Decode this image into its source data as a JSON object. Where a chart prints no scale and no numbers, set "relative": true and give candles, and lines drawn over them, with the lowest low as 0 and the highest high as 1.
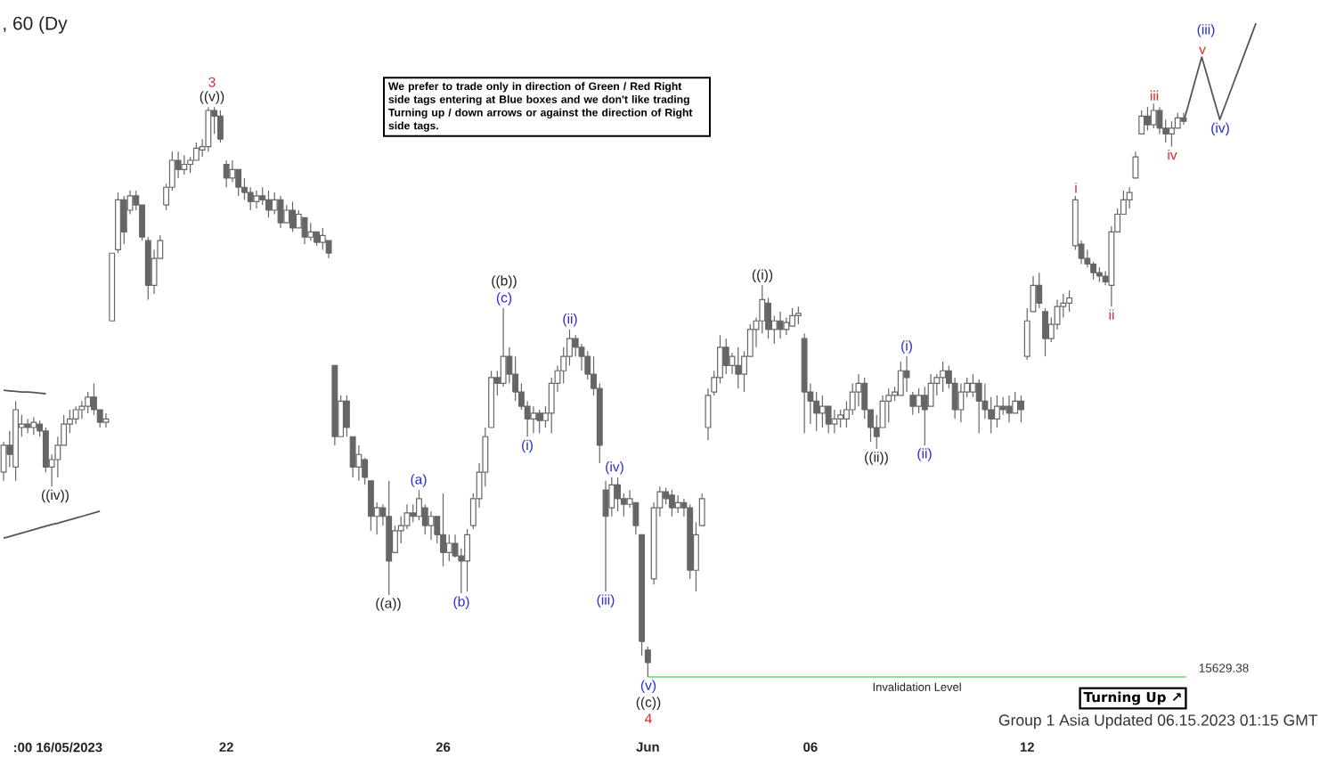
{
  "chart_data": {
    "type": "candlestick",
    "title": ", 60 (Dy",
    "relative": true,
    "color": "#666666",
    "categories": [
      null,
      null,
      null,
      null,
      null,
      null,
      null,
      null,
      null,
      ":00 16/05/2023",
      null,
      null,
      null,
      null,
      null,
      null,
      null,
      null,
      null,
      null,
      null,
      null,
      null,
      null,
      null,
      null,
      null,
      null,
      null,
      null,
      null,
      null,
      null,
      null,
      null,
      null,
      null,
      "22",
      null,
      null,
      null,
      null,
      null,
      null,
      null,
      null,
      null,
      null,
      null,
      null,
      null,
      null,
      null,
      null,
      null,
      null,
      null,
      null,
      null,
      null,
      null,
      null,
      null,
      null,
      null,
      null,
      null,
      null,
      null,
      null,
      null,
      null,
      null,
      "26",
      null,
      null,
      null,
      null,
      null,
      null,
      null,
      null,
      null,
      null,
      null,
      null,
      null,
      null,
      null,
      null,
      null,
      null,
      null,
      null,
      null,
      null,
      null,
      null,
      null,
      null,
      null,
      null,
      null,
      null,
      null,
      null,
      null,
      "Jun",
      null,
      null,
      null,
      null,
      null,
      null,
      null,
      null,
      null,
      null,
      null,
      null,
      null,
      null,
      null,
      null,
      null,
      null,
      null,
      null,
      null,
      null,
      null,
      null,
      null,
      null,
      "06",
      null,
      null,
      null,
      null,
      null,
      null,
      null,
      null,
      null,
      null,
      null,
      null,
      null,
      null,
      null,
      null,
      null,
      null,
      null,
      null,
      null,
      null,
      null,
      null,
      null,
      null,
      null,
      null,
      null,
      null,
      null,
      null,
      null,
      null,
      null,
      "12",
      null,
      null,
      null,
      null,
      null,
      null,
      null,
      null,
      null,
      null,
      null,
      null,
      null,
      null,
      null,
      null,
      null,
      null,
      null,
      null,
      null,
      null,
      null,
      null,
      null,
      null,
      null,
      null,
      null,
      null,
      null,
      null,
      null,
      null,
      null,
      null,
      null,
      null
    ],
    "ohlc": [
      [
        0.357,
        0.41,
        0.342,
        0.404
      ],
      [
        0.404,
        0.429,
        0.366,
        0.388
      ],
      [
        0.366,
        0.481,
        0.342,
        0.466
      ],
      [
        0.435,
        0.457,
        0.419,
        0.441
      ],
      [
        0.441,
        0.45,
        0.425,
        0.435
      ],
      [
        0.435,
        0.453,
        0.422,
        0.444
      ],
      [
        0.441,
        0.447,
        0.419,
        0.429
      ],
      [
        0.429,
        0.435,
        0.357,
        0.366
      ],
      [
        0.366,
        0.388,
        0.332,
        0.379
      ],
      [
        0.379,
        0.419,
        0.348,
        0.404
      ],
      [
        0.404,
        0.457,
        0.404,
        0.441
      ],
      [
        0.441,
        0.466,
        0.425,
        0.45
      ],
      [
        0.45,
        0.472,
        0.441,
        0.466
      ],
      [
        0.466,
        0.481,
        0.45,
        0.472
      ],
      [
        0.472,
        0.497,
        0.46,
        0.488
      ],
      [
        0.488,
        0.512,
        0.457,
        0.466
      ],
      [
        0.466,
        0.466,
        0.435,
        0.444
      ],
      [
        0.444,
        0.46,
        0.435,
        0.45
      ],
      [
        0.621,
        0.739,
        0.621,
        0.739
      ],
      [
        0.745,
        0.845,
        0.739,
        0.832
      ],
      [
        0.832,
        0.839,
        0.755,
        0.776
      ],
      [
        0.814,
        0.848,
        0.807,
        0.839
      ],
      [
        0.839,
        0.848,
        0.814,
        0.823
      ],
      [
        0.823,
        0.823,
        0.761,
        0.767
      ],
      [
        0.761,
        0.767,
        0.658,
        0.683
      ],
      [
        0.683,
        0.745,
        0.668,
        0.73
      ],
      [
        0.73,
        0.77,
        0.73,
        0.761
      ],
      [
        0.823,
        0.86,
        0.814,
        0.854
      ],
      [
        0.854,
        0.916,
        0.848,
        0.901
      ],
      [
        0.901,
        0.916,
        0.87,
        0.885
      ],
      [
        0.885,
        0.91,
        0.876,
        0.894
      ],
      [
        0.894,
        0.907,
        0.879,
        0.901
      ],
      [
        0.901,
        0.932,
        0.901,
        0.922
      ],
      [
        0.919,
        0.938,
        0.907,
        0.925
      ],
      [
        0.925,
        0.994,
        0.916,
        0.988
      ],
      [
        0.988,
        0.994,
        0.947,
        0.978
      ],
      [
        0.978,
        0.988,
        0.932,
        0.938
      ],
      [
        0.894,
        0.901,
        0.854,
        0.87
      ],
      [
        0.87,
        0.901,
        0.863,
        0.885
      ],
      [
        0.885,
        0.885,
        0.839,
        0.854
      ],
      [
        0.854,
        0.87,
        0.832,
        0.845
      ],
      [
        0.845,
        0.854,
        0.814,
        0.829
      ],
      [
        0.829,
        0.848,
        0.817,
        0.839
      ],
      [
        0.839,
        0.854,
        0.823,
        0.832
      ],
      [
        0.832,
        0.848,
        0.801,
        0.814
      ],
      [
        0.814,
        0.845,
        0.807,
        0.832
      ],
      [
        0.832,
        0.839,
        0.783,
        0.792
      ],
      [
        0.792,
        0.823,
        0.792,
        0.814
      ],
      [
        0.814,
        0.829,
        0.776,
        0.783
      ],
      [
        0.783,
        0.814,
        0.783,
        0.807
      ],
      [
        0.801,
        0.801,
        0.755,
        0.767
      ],
      [
        0.767,
        0.792,
        0.761,
        0.776
      ],
      [
        0.776,
        0.776,
        0.752,
        0.758
      ],
      [
        0.758,
        0.783,
        0.745,
        0.77
      ],
      [
        0.761,
        0.761,
        0.73,
        0.739
      ],
      [
        0.543,
        0.543,
        0.404,
        0.419
      ],
      [
        0.419,
        0.491,
        0.419,
        0.481
      ],
      [
        0.481,
        0.491,
        0.419,
        0.435
      ],
      [
        0.419,
        0.419,
        0.348,
        0.366
      ],
      [
        0.366,
        0.404,
        0.342,
        0.388
      ],
      [
        0.379,
        0.382,
        0.335,
        0.348
      ],
      [
        0.342,
        0.342,
        0.255,
        0.28
      ],
      [
        0.28,
        0.304,
        0.248,
        0.295
      ],
      [
        0.295,
        0.301,
        0.264,
        0.28
      ],
      [
        0.28,
        0.342,
        0.143,
        0.202
      ],
      [
        0.217,
        0.264,
        0.217,
        0.255
      ],
      [
        0.255,
        0.28,
        0.233,
        0.264
      ],
      [
        0.264,
        0.301,
        0.258,
        0.286
      ],
      [
        0.286,
        0.301,
        0.27,
        0.28
      ],
      [
        0.28,
        0.326,
        0.273,
        0.311
      ],
      [
        0.295,
        0.301,
        0.248,
        0.264
      ],
      [
        0.264,
        0.289,
        0.239,
        0.28
      ],
      [
        0.28,
        0.28,
        0.233,
        0.248
      ],
      [
        0.248,
        0.32,
        0.193,
        0.217
      ],
      [
        0.217,
        0.248,
        0.202,
        0.233
      ],
      [
        0.233,
        0.248,
        0.208,
        0.211
      ],
      [
        0.211,
        0.224,
        0.146,
        0.202
      ],
      [
        0.202,
        0.258,
        0.149,
        0.248
      ],
      [
        0.264,
        0.32,
        0.258,
        0.311
      ],
      [
        0.311,
        0.373,
        0.295,
        0.357
      ],
      [
        0.357,
        0.435,
        0.332,
        0.419
      ],
      [
        0.435,
        0.534,
        0.435,
        0.522
      ],
      [
        0.522,
        0.534,
        0.491,
        0.512
      ],
      [
        0.512,
        0.643,
        0.506,
        0.559
      ],
      [
        0.559,
        0.575,
        0.512,
        0.528
      ],
      [
        0.528,
        0.559,
        0.481,
        0.497
      ],
      [
        0.497,
        0.512,
        0.466,
        0.472
      ],
      [
        0.472,
        0.481,
        0.419,
        0.45
      ],
      [
        0.45,
        0.472,
        0.425,
        0.46
      ],
      [
        0.46,
        0.466,
        0.425,
        0.447
      ],
      [
        0.447,
        0.472,
        0.435,
        0.46
      ],
      [
        0.46,
        0.522,
        0.425,
        0.512
      ],
      [
        0.512,
        0.543,
        0.497,
        0.534
      ],
      [
        0.534,
        0.575,
        0.512,
        0.559
      ],
      [
        0.559,
        0.606,
        0.543,
        0.59
      ],
      [
        0.59,
        0.596,
        0.559,
        0.575
      ],
      [
        0.575,
        0.581,
        0.534,
        0.559
      ],
      [
        0.559,
        0.568,
        0.519,
        0.528
      ],
      [
        0.528,
        0.559,
        0.491,
        0.503
      ],
      [
        0.503,
        0.512,
        0.373,
        0.404
      ],
      [
        0.326,
        0.342,
        0.149,
        0.28
      ],
      [
        0.295,
        0.348,
        0.28,
        0.335
      ],
      [
        0.335,
        0.348,
        0.289,
        0.311
      ],
      [
        0.311,
        0.32,
        0.28,
        0.301
      ],
      [
        0.301,
        0.326,
        0.295,
        0.311
      ],
      [
        0.304,
        0.304,
        0.248,
        0.264
      ],
      [
        0.248,
        0.248,
        0.037,
        0.062
      ],
      [
        0.047,
        0.053,
        0,
        0.025
      ],
      [
        0.171,
        0.304,
        0.161,
        0.295
      ],
      [
        0.295,
        0.332,
        0.28,
        0.323
      ],
      [
        0.323,
        0.33,
        0.301,
        0.311
      ],
      [
        0.317,
        0.326,
        0.28,
        0.295
      ],
      [
        0.295,
        0.317,
        0.286,
        0.304
      ],
      [
        0.304,
        0.311,
        0.28,
        0.295
      ],
      [
        0.295,
        0.301,
        0.171,
        0.186
      ],
      [
        0.186,
        0.27,
        0.149,
        0.248
      ],
      [
        0.264,
        0.32,
        0.264,
        0.311
      ],
      [
        0.435,
        0.503,
        0.413,
        0.491
      ],
      [
        0.497,
        0.534,
        0.491,
        0.522
      ],
      [
        0.522,
        0.596,
        0.512,
        0.575
      ],
      [
        0.575,
        0.59,
        0.528,
        0.543
      ],
      [
        0.543,
        0.565,
        0.528,
        0.559
      ],
      [
        0.543,
        0.575,
        0.503,
        0.528
      ],
      [
        0.528,
        0.568,
        0.497,
        0.559
      ],
      [
        0.559,
        0.615,
        0.559,
        0.606
      ],
      [
        0.606,
        0.627,
        0.575,
        0.621
      ],
      [
        0.621,
        0.683,
        0.599,
        0.658
      ],
      [
        0.652,
        0.661,
        0.59,
        0.606
      ],
      [
        0.606,
        0.63,
        0.581,
        0.621
      ],
      [
        0.621,
        0.637,
        0.59,
        0.606
      ],
      [
        0.606,
        0.627,
        0.596,
        0.618
      ],
      [
        0.612,
        0.643,
        0.612,
        0.63
      ],
      [
        0.63,
        0.646,
        0.615,
        0.634
      ],
      [
        0.59,
        0.599,
        0.425,
        0.497
      ],
      [
        0.497,
        0.512,
        0.441,
        0.481
      ],
      [
        0.481,
        0.497,
        0.429,
        0.46
      ],
      [
        0.46,
        0.491,
        0.435,
        0.472
      ],
      [
        0.472,
        0.472,
        0.425,
        0.441
      ],
      [
        0.441,
        0.466,
        0.425,
        0.45
      ],
      [
        0.45,
        0.466,
        0.435,
        0.457
      ],
      [
        0.45,
        0.481,
        0.435,
        0.466
      ],
      [
        0.466,
        0.512,
        0.457,
        0.497
      ],
      [
        0.497,
        0.528,
        0.472,
        0.512
      ],
      [
        0.512,
        0.522,
        0.45,
        0.466
      ],
      [
        0.466,
        0.466,
        0.41,
        0.435
      ],
      [
        0.435,
        0.457,
        0.398,
        0.419
      ],
      [
        0.435,
        0.491,
        0.435,
        0.481
      ],
      [
        0.481,
        0.503,
        0.444,
        0.491
      ],
      [
        0.491,
        0.506,
        0.481,
        0.497
      ],
      [
        0.491,
        0.55,
        0.491,
        0.534
      ],
      [
        0.534,
        0.559,
        0.497,
        0.522
      ],
      [
        0.491,
        0.497,
        0.457,
        0.472
      ],
      [
        0.472,
        0.503,
        0.46,
        0.491
      ],
      [
        0.491,
        0.506,
        0.404,
        0.466
      ],
      [
        0.472,
        0.528,
        0.472,
        0.512
      ],
      [
        0.512,
        0.528,
        0.491,
        0.522
      ],
      [
        0.522,
        0.55,
        0.497,
        0.534
      ],
      [
        0.534,
        0.543,
        0.503,
        0.512
      ],
      [
        0.512,
        0.522,
        0.45,
        0.466
      ],
      [
        0.466,
        0.512,
        0.444,
        0.497
      ],
      [
        0.497,
        0.522,
        0.488,
        0.512
      ],
      [
        0.497,
        0.528,
        0.488,
        0.512
      ],
      [
        0.512,
        0.519,
        0.425,
        0.481
      ],
      [
        0.481,
        0.512,
        0.45,
        0.466
      ],
      [
        0.466,
        0.488,
        0.425,
        0.45
      ],
      [
        0.45,
        0.491,
        0.435,
        0.472
      ],
      [
        0.472,
        0.488,
        0.457,
        0.466
      ],
      [
        0.472,
        0.491,
        0.444,
        0.46
      ],
      [
        0.46,
        0.497,
        0.46,
        0.481
      ],
      [
        0.481,
        0.491,
        0.444,
        0.466
      ],
      [
        0.559,
        0.643,
        0.553,
        0.621
      ],
      [
        0.637,
        0.699,
        0.637,
        0.683
      ],
      [
        0.683,
        0.705,
        0.643,
        0.652
      ],
      [
        0.637,
        0.643,
        0.559,
        0.59
      ],
      [
        0.59,
        0.627,
        0.584,
        0.615
      ],
      [
        0.615,
        0.658,
        0.606,
        0.646
      ],
      [
        0.646,
        0.668,
        0.627,
        0.652
      ],
      [
        0.652,
        0.674,
        0.637,
        0.661
      ],
      [
        0.752,
        0.839,
        0.745,
        0.832
      ],
      [
        0.755,
        0.761,
        0.72,
        0.73
      ],
      [
        0.73,
        0.745,
        0.714,
        0.72
      ],
      [
        0.72,
        0.724,
        0.693,
        0.705
      ],
      [
        0.705,
        0.714,
        0.689,
        0.699
      ],
      [
        0.699,
        0.708,
        0.683,
        0.689
      ],
      [
        0.683,
        0.786,
        0.646,
        0.776
      ],
      [
        0.776,
        0.817,
        0.776,
        0.807
      ],
      [
        0.807,
        0.848,
        0.807,
        0.832
      ],
      [
        0.832,
        0.854,
        0.817,
        0.845
      ],
      [
        0.87,
        0.916,
        0.87,
        0.907
      ],
      [
        0.947,
        0.988,
        0.947,
        0.978
      ],
      [
        0.978,
        0.994,
        0.953,
        0.963
      ],
      [
        0.963,
        1.0,
        0.957,
        0.988
      ],
      [
        0.988,
        0.994,
        0.947,
        0.957
      ],
      [
        0.957,
        0.972,
        0.932,
        0.947
      ],
      [
        0.947,
        0.969,
        0.925,
        0.957
      ],
      [
        0.957,
        0.984,
        0.957,
        0.975
      ],
      [
        0.975,
        0.984,
        0.963,
        0.969
      ],
      null,
      null,
      null,
      null,
      null,
      null,
      null,
      null,
      null,
      null,
      null,
      null
    ],
    "series": [
      {
        "type": "line",
        "color": "#555555",
        "values": [
          0.5,
          0.499,
          0.498,
          0.497,
          0.497,
          0.496,
          0.495,
          0.494,
          null,
          null,
          null,
          null,
          null,
          null,
          null,
          null,
          null,
          null,
          null,
          null,
          null,
          null,
          null,
          null,
          null,
          null,
          null,
          null,
          null,
          null,
          null,
          null,
          null,
          null,
          null,
          null,
          null,
          null,
          null,
          null,
          null,
          null,
          null,
          null,
          null,
          null,
          null,
          null,
          null,
          null,
          null,
          null,
          null,
          null,
          null,
          null,
          null,
          null,
          null,
          null,
          null,
          null,
          null,
          null,
          null,
          null,
          null,
          null,
          null,
          null,
          null,
          null,
          null,
          null,
          null,
          null,
          null,
          null,
          null,
          null,
          null,
          null,
          null,
          null,
          null,
          null,
          null,
          null,
          null,
          null,
          null,
          null,
          null,
          null,
          null,
          null,
          null,
          null,
          null,
          null,
          null,
          null,
          null,
          null,
          null,
          null,
          null,
          null,
          null,
          null,
          null,
          null,
          null,
          null,
          null,
          null,
          null,
          null,
          null,
          null,
          null,
          null,
          null,
          null,
          null,
          null,
          null,
          null,
          null,
          null,
          null,
          null,
          null,
          null,
          null,
          null,
          null,
          null,
          null,
          null,
          null,
          null,
          null,
          null,
          null,
          null,
          null,
          null,
          null,
          null,
          null,
          null,
          null,
          null,
          null,
          null,
          null,
          null,
          null,
          null,
          null,
          null,
          null,
          null,
          null,
          null,
          null,
          null,
          null,
          null,
          null,
          null,
          null,
          null,
          null,
          null,
          null,
          null,
          null,
          null,
          null,
          null,
          null,
          null,
          null,
          null,
          null,
          null,
          null,
          null,
          null,
          null,
          null,
          null,
          null,
          null,
          null,
          null,
          null,
          null,
          null,
          null,
          null,
          null,
          null,
          null,
          null,
          null,
          null
        ]
      },
      {
        "type": "line",
        "color": "#555555",
        "values": [
          0.242,
          0.245,
          0.248,
          0.251,
          0.254,
          0.257,
          0.26,
          0.263,
          0.266,
          0.268,
          0.271,
          0.274,
          0.277,
          0.28,
          0.283,
          0.286,
          0.289,
          null,
          null,
          null,
          null,
          null,
          null,
          null,
          null,
          null,
          null,
          null,
          null,
          null,
          null,
          null,
          null,
          null,
          null,
          null,
          null,
          null,
          null,
          null,
          null,
          null,
          null,
          null,
          null,
          null,
          null,
          null,
          null,
          null,
          null,
          null,
          null,
          null,
          null,
          null,
          null,
          null,
          null,
          null,
          null,
          null,
          null,
          null,
          null,
          null,
          null,
          null,
          null,
          null,
          null,
          null,
          null,
          null,
          null,
          null,
          null,
          null,
          null,
          null,
          null,
          null,
          null,
          null,
          null,
          null,
          null,
          null,
          null,
          null,
          null,
          null,
          null,
          null,
          null,
          null,
          null,
          null,
          null,
          null,
          null,
          null,
          null,
          null,
          null,
          null,
          null,
          null,
          null,
          null,
          null,
          null,
          null,
          null,
          null,
          null,
          null,
          null,
          null,
          null,
          null,
          null,
          null,
          null,
          null,
          null,
          null,
          null,
          null,
          null,
          null,
          null,
          null,
          null,
          null,
          null,
          null,
          null,
          null,
          null,
          null,
          null,
          null,
          null,
          null,
          null,
          null,
          null,
          null,
          null,
          null,
          null,
          null,
          null,
          null,
          null,
          null,
          null,
          null,
          null,
          null,
          null,
          null,
          null,
          null,
          null,
          null,
          null,
          null,
          null,
          null,
          null,
          null,
          null,
          null,
          null,
          null,
          null,
          null,
          null,
          null,
          null,
          null,
          null,
          null,
          null,
          null,
          null,
          null,
          null,
          null,
          null,
          null,
          null,
          null,
          null,
          null,
          null,
          null,
          null,
          null,
          null,
          null,
          null,
          null,
          null,
          null,
          null,
          null
        ]
      },
      {
        "type": "line",
        "color": "#555555",
        "values": [
          null,
          null,
          null,
          null,
          null,
          null,
          null,
          null,
          null,
          null,
          null,
          null,
          null,
          null,
          null,
          null,
          null,
          null,
          null,
          null,
          null,
          null,
          null,
          null,
          null,
          null,
          null,
          null,
          null,
          null,
          null,
          null,
          null,
          null,
          null,
          null,
          null,
          null,
          null,
          null,
          null,
          null,
          null,
          null,
          null,
          null,
          null,
          null,
          null,
          null,
          null,
          null,
          null,
          null,
          null,
          null,
          null,
          null,
          null,
          null,
          null,
          null,
          null,
          null,
          null,
          null,
          null,
          null,
          null,
          null,
          null,
          null,
          null,
          null,
          null,
          null,
          null,
          null,
          null,
          null,
          null,
          null,
          null,
          null,
          null,
          null,
          null,
          null,
          null,
          null,
          null,
          null,
          null,
          null,
          null,
          null,
          null,
          null,
          null,
          null,
          null,
          null,
          null,
          null,
          null,
          null,
          null,
          null,
          null,
          null,
          null,
          null,
          null,
          null,
          null,
          null,
          null,
          null,
          null,
          null,
          null,
          null,
          null,
          null,
          null,
          null,
          null,
          null,
          null,
          null,
          null,
          null,
          null,
          null,
          null,
          null,
          null,
          null,
          null,
          null,
          null,
          null,
          null,
          null,
          null,
          null,
          null,
          null,
          null,
          null,
          null,
          null,
          null,
          null,
          null,
          null,
          null,
          null,
          null,
          null,
          null,
          null,
          null,
          null,
          null,
          null,
          null,
          null,
          null,
          null,
          null,
          null,
          null,
          null,
          null,
          null,
          null,
          null,
          null,
          null,
          null,
          null,
          null,
          null,
          null,
          null,
          null,
          null,
          null,
          null,
          null,
          null,
          null,
          null,
          null,
          null,
          0.969,
          1.006,
          1.044,
          1.081,
          1.045,
          1.008,
          0.972,
          1.0,
          1.028,
          1.056,
          1.084,
          1.112,
          1.14
        ]
      }
    ],
    "ref_lines": [
      {
        "axis": "y",
        "value": 0,
        "label": "Invalidation Level",
        "color": "#8fe38f"
      }
    ],
    "annotations": [
      {
        "text": "3",
        "y": 0.994
      },
      {
        "text": "((v))",
        "y": 0.994
      },
      {
        "text": "((iv))",
        "y": 0.332
      },
      {
        "text": "((a))",
        "y": 0.143
      },
      {
        "text": "(a)",
        "y": 0.326
      },
      {
        "text": "(b)",
        "y": 0.146
      },
      {
        "text": "((b))",
        "y": 0.643
      },
      {
        "text": "(c)",
        "y": 0.643
      },
      {
        "text": "(i)",
        "y": 0.419
      },
      {
        "text": "(ii)",
        "y": 0.606
      },
      {
        "text": "(iii)",
        "y": 0.149
      },
      {
        "text": "(iv)",
        "y": 0.348
      },
      {
        "text": "(v)",
        "y": 0
      },
      {
        "text": "((c))",
        "y": 0
      },
      {
        "text": "4",
        "y": 0
      },
      {
        "text": "((i))",
        "y": 0.683
      },
      {
        "text": "((ii))",
        "y": 0.398
      },
      {
        "text": "(i)",
        "y": 0.559
      },
      {
        "text": "(ii)",
        "y": 0.404
      },
      {
        "text": "i",
        "y": 0.839
      },
      {
        "text": "ii",
        "y": 0.646
      },
      {
        "text": "iii",
        "y": 1.0
      },
      {
        "text": "iv",
        "y": 0.925
      },
      {
        "text": "v",
        "y": 1.081
      },
      {
        "text": "(iii)",
        "y": 1.081
      },
      {
        "text": "(iv)",
        "y": 0.972
      },
      "15629.38",
      "We prefer to trade only in direction of Green / Red Right side tags entering at Blue boxes and we don't like trading Turning up / down arrows or against the direction of Right side tags.",
      "Turning Up ↗",
      "Group 1 Asia Updated 06.15.2023 01:15 GMT"
    ]
  }
}
